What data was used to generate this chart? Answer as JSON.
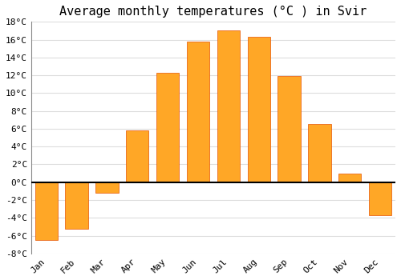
{
  "title": "Average monthly temperatures (°C ) in Svir",
  "months": [
    "Jan",
    "Feb",
    "Mar",
    "Apr",
    "May",
    "Jun",
    "Jul",
    "Aug",
    "Sep",
    "Oct",
    "Nov",
    "Dec"
  ],
  "values": [
    -6.5,
    -5.2,
    -1.2,
    5.8,
    12.3,
    15.8,
    17.0,
    16.3,
    11.9,
    6.5,
    1.0,
    -3.7
  ],
  "bar_color": "#FFA726",
  "bar_edge_color": "#E65100",
  "ylim": [
    -8,
    18
  ],
  "yticks": [
    -8,
    -6,
    -4,
    -2,
    0,
    2,
    4,
    6,
    8,
    10,
    12,
    14,
    16,
    18
  ],
  "background_color": "#ffffff",
  "grid_color": "#dddddd",
  "title_fontsize": 11,
  "tick_fontsize": 8,
  "zero_line_color": "#000000"
}
